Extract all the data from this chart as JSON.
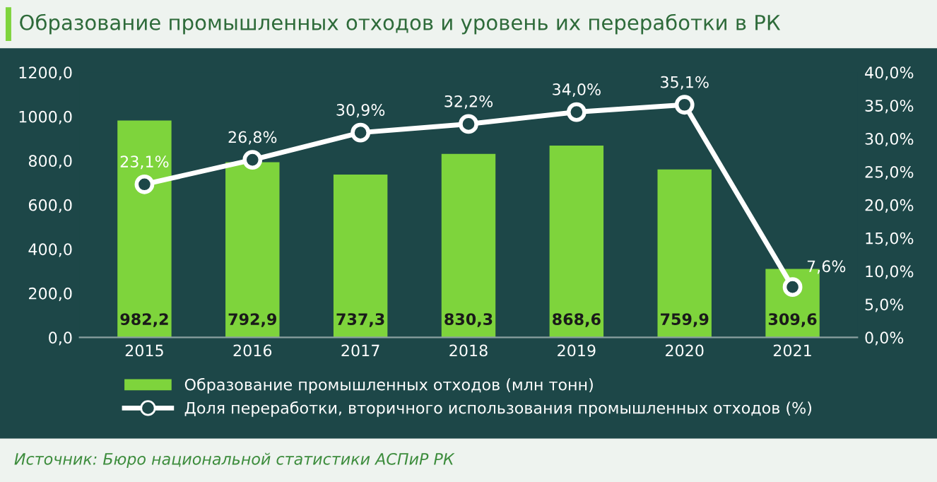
{
  "chart_data": {
    "type": "bar",
    "title": "Образование промышленных отходов и уровень их переработки в РК",
    "categories": [
      "2015",
      "2016",
      "2017",
      "2018",
      "2019",
      "2020",
      "2021"
    ],
    "series": [
      {
        "name": "Образование промышленных отходов (млн тонн)",
        "color": "#7ed43c",
        "values": [
          982.2,
          792.9,
          737.3,
          830.3,
          868.6,
          759.9,
          309.6
        ],
        "value_labels": [
          "982,2",
          "792,9",
          "737,3",
          "830,3",
          "868,6",
          "759,9",
          "309,6"
        ]
      },
      {
        "name": "Доля переработки, вторичного использования промышленных отходов (%)",
        "type": "line",
        "axis": "y2",
        "color": "#ffffff",
        "marker": "circle",
        "values": [
          23.1,
          26.8,
          30.9,
          32.2,
          34.0,
          35.1,
          7.6
        ],
        "value_labels": [
          "23,1%",
          "26,8%",
          "30,9%",
          "32,2%",
          "34,0%",
          "35,1%",
          "7,6%"
        ]
      }
    ],
    "ylim": [
      0,
      1200
    ],
    "yticks": [
      {
        "value": 0,
        "label": "0,0"
      },
      {
        "value": 200,
        "label": "200,0"
      },
      {
        "value": 400,
        "label": "400,0"
      },
      {
        "value": 600,
        "label": "600,0"
      },
      {
        "value": 800,
        "label": "800,0"
      },
      {
        "value": 1000,
        "label": "1000,0"
      },
      {
        "value": 1200,
        "label": "1200,0"
      }
    ],
    "y2lim": [
      0,
      40
    ],
    "y2ticks": [
      {
        "value": 0,
        "label": "0,0%"
      },
      {
        "value": 5,
        "label": "5,0%"
      },
      {
        "value": 10,
        "label": "10,0%"
      },
      {
        "value": 15,
        "label": "15,0%"
      },
      {
        "value": 20,
        "label": "20,0%"
      },
      {
        "value": 25,
        "label": "25,0%"
      },
      {
        "value": 30,
        "label": "30,0%"
      },
      {
        "value": 35,
        "label": "35,0%"
      },
      {
        "value": 40,
        "label": "40,0%"
      }
    ],
    "legend": "bottom",
    "grid": false,
    "annotations": [
      "Источник: Бюро национальной статистики АСПиР РК"
    ]
  }
}
